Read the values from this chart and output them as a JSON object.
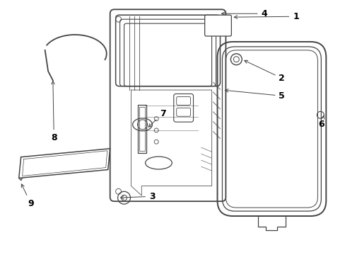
{
  "background_color": "#ffffff",
  "line_color": "#444444",
  "label_color": "#000000",
  "figsize": [
    4.89,
    3.6
  ],
  "dpi": 100
}
